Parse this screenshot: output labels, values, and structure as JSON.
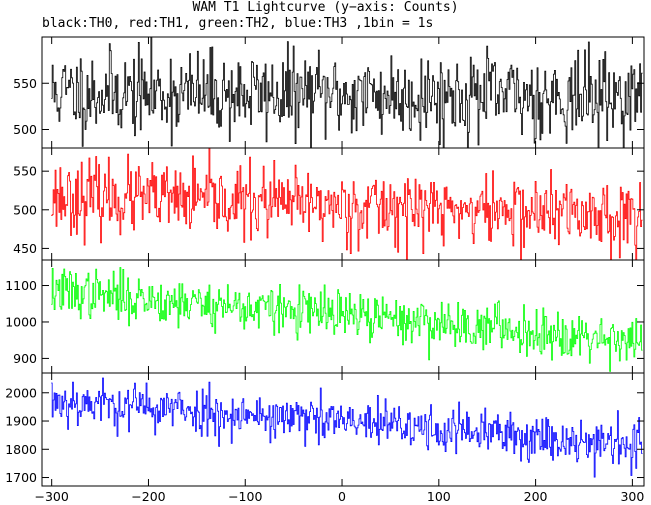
{
  "title": "WAM T1 Lightcurve (y−axis: Counts)",
  "subtitle": "black:TH0, red:TH1, green:TH2, blue:TH3 ,1bin = 1s",
  "chart_data": {
    "type": "line",
    "bin_size_s": 1,
    "xlim": [
      -310,
      312
    ],
    "x_ticks": [
      -300,
      -200,
      -100,
      0,
      100,
      200,
      300
    ],
    "x_tick_labels": [
      "−300",
      "−200",
      "−100",
      "0",
      "100",
      "200",
      "300"
    ],
    "x_range": [
      -300,
      310
    ],
    "grid": false,
    "legend": "none",
    "panels": [
      {
        "name": "TH0",
        "color": "#000000",
        "ylim": [
          480,
          600
        ],
        "y_ticks": [
          500,
          550
        ],
        "y_tick_labels": [
          "500",
          "550"
        ],
        "trend_start": 540,
        "trend_end": 535,
        "noise": 23,
        "seed": 11
      },
      {
        "name": "TH1",
        "color": "#ff0000",
        "ylim": [
          435,
          580
        ],
        "y_ticks": [
          450,
          500,
          550
        ],
        "y_tick_labels": [
          "450",
          "500",
          "550"
        ],
        "trend_start": 518,
        "trend_end": 492,
        "noise": 23,
        "seed": 23
      },
      {
        "name": "TH2",
        "color": "#00ff00",
        "ylim": [
          860,
          1170
        ],
        "y_ticks": [
          900,
          1000,
          1100
        ],
        "y_tick_labels": [
          "900",
          "1000",
          "1100"
        ],
        "trend_start": 1085,
        "trend_end": 950,
        "noise": 33,
        "seed": 37
      },
      {
        "name": "TH3",
        "color": "#0000ff",
        "ylim": [
          1670,
          2070
        ],
        "y_ticks": [
          1700,
          1800,
          1900,
          2000
        ],
        "y_tick_labels": [
          "1700",
          "1800",
          "1900",
          "2000"
        ],
        "trend_start": 1975,
        "trend_end": 1815,
        "noise": 42,
        "seed": 53
      }
    ]
  }
}
